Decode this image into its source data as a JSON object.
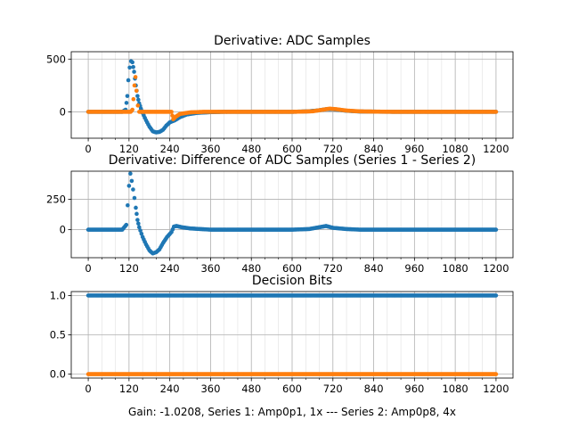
{
  "colors": {
    "series1": "#1f77b4",
    "series2": "#ff7f0e",
    "grid": "#b0b0b0",
    "axis": "#000000"
  },
  "footer_text": "Gain: -1.0208, Series 1: Amp0p1, 1x --- Series 2: Amp0p8, 4x",
  "chart_data": [
    {
      "type": "scatter",
      "title": "Derivative: ADC Samples",
      "xlabel": "",
      "ylabel": "",
      "xlim": [
        -50,
        1250
      ],
      "ylim": [
        -250,
        570
      ],
      "x_ticks": [
        0,
        120,
        240,
        360,
        480,
        600,
        720,
        840,
        960,
        1080,
        1200
      ],
      "y_ticks": [
        0,
        500
      ],
      "grid": true,
      "series": [
        {
          "color": "series1",
          "x": [
            0,
            100,
            110,
            115,
            118,
            122,
            126,
            130,
            135,
            140,
            145,
            150,
            155,
            160,
            170,
            180,
            190,
            200,
            210,
            220,
            230,
            240,
            255,
            270,
            290,
            320,
            360,
            400,
            450,
            500,
            600,
            650,
            680,
            700,
            720,
            740,
            760,
            800,
            900,
            1000,
            1100,
            1200
          ],
          "y": [
            0,
            0,
            20,
            150,
            300,
            420,
            480,
            470,
            380,
            250,
            150,
            80,
            30,
            -10,
            -80,
            -140,
            -185,
            -195,
            -190,
            -170,
            -130,
            -100,
            -80,
            -50,
            -25,
            -10,
            -3,
            0,
            0,
            0,
            0,
            5,
            15,
            25,
            25,
            18,
            10,
            3,
            0,
            0,
            0,
            0
          ]
        },
        {
          "color": "series2",
          "x": [
            0,
            100,
            125,
            130,
            133,
            136,
            139,
            142,
            146,
            150,
            170,
            200,
            230,
            245,
            250,
            258,
            270,
            300,
            340,
            400,
            500,
            600,
            660,
            690,
            710,
            730,
            760,
            800,
            900,
            1000,
            1100,
            1200
          ],
          "y": [
            0,
            0,
            0,
            20,
            120,
            250,
            330,
            200,
            60,
            0,
            0,
            0,
            0,
            0,
            -70,
            -45,
            -20,
            -5,
            0,
            0,
            0,
            0,
            5,
            20,
            30,
            25,
            12,
            4,
            0,
            0,
            0,
            0
          ]
        }
      ]
    },
    {
      "type": "scatter",
      "title": "Derivative: Difference of ADC Samples (Series 1 - Series 2)",
      "xlabel": "",
      "ylabel": "",
      "xlim": [
        -50,
        1250
      ],
      "ylim": [
        -230,
        480
      ],
      "x_ticks": [
        0,
        120,
        240,
        360,
        480,
        600,
        720,
        840,
        960,
        1080,
        1200
      ],
      "y_ticks": [
        0,
        250
      ],
      "grid": true,
      "series": [
        {
          "color": "series1",
          "x": [
            0,
            100,
            112,
            116,
            120,
            124,
            128,
            132,
            136,
            140,
            145,
            150,
            160,
            170,
            180,
            190,
            200,
            210,
            220,
            232,
            245,
            252,
            260,
            275,
            300,
            330,
            360,
            400,
            500,
            600,
            650,
            680,
            700,
            720,
            760,
            800,
            900,
            1000,
            1100,
            1200
          ],
          "y": [
            0,
            0,
            40,
            200,
            360,
            460,
            400,
            330,
            260,
            180,
            80,
            20,
            -60,
            -120,
            -170,
            -195,
            -185,
            -160,
            -110,
            -60,
            -20,
            25,
            30,
            20,
            10,
            5,
            0,
            0,
            0,
            0,
            5,
            20,
            30,
            15,
            5,
            0,
            0,
            0,
            0,
            0
          ]
        }
      ]
    },
    {
      "type": "scatter",
      "title": "Decision Bits",
      "xlabel": "",
      "ylabel": "",
      "xlim": [
        -50,
        1250
      ],
      "ylim": [
        -0.05,
        1.05
      ],
      "x_ticks": [
        0,
        120,
        240,
        360,
        480,
        600,
        720,
        840,
        960,
        1080,
        1200
      ],
      "y_ticks": [
        0.0,
        0.5,
        1.0
      ],
      "grid": true,
      "series": [
        {
          "color": "series1",
          "x": [
            0,
            1200
          ],
          "y": [
            1,
            1
          ]
        },
        {
          "color": "series2",
          "x": [
            0,
            1200
          ],
          "y": [
            0,
            0
          ]
        }
      ]
    }
  ]
}
